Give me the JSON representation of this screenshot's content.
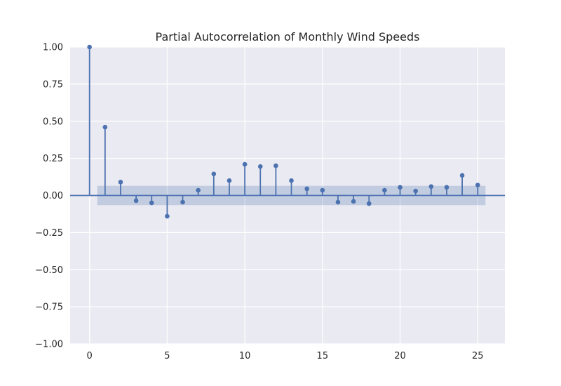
{
  "chart_data": {
    "type": "stem",
    "title": "Partial Autocorrelation of Monthly Wind Speeds",
    "xlabel": "",
    "ylabel": "",
    "xlim": [
      -1.25,
      26.75
    ],
    "ylim": [
      -1.0,
      1.0
    ],
    "x_ticks": [
      0,
      5,
      10,
      15,
      20,
      25
    ],
    "y_ticks": [
      1.0,
      0.75,
      0.5,
      0.25,
      0.0,
      -0.25,
      -0.5,
      -0.75,
      -1.0
    ],
    "y_tick_labels": [
      "1.00",
      "0.75",
      "0.50",
      "0.25",
      "0.00",
      "−0.25",
      "−0.50",
      "−0.75",
      "−1.00"
    ],
    "grid": true,
    "lags": [
      0,
      1,
      2,
      3,
      4,
      5,
      6,
      7,
      8,
      9,
      10,
      11,
      12,
      13,
      14,
      15,
      16,
      17,
      18,
      19,
      20,
      21,
      22,
      23,
      24,
      25
    ],
    "values": [
      1.0,
      0.46,
      0.09,
      -0.035,
      -0.05,
      -0.14,
      -0.045,
      0.035,
      0.145,
      0.1,
      0.21,
      0.195,
      0.2,
      0.1,
      0.045,
      0.035,
      -0.045,
      -0.04,
      -0.055,
      0.035,
      0.055,
      0.03,
      0.06,
      0.055,
      0.135,
      0.07
    ],
    "confidence_interval": {
      "x_range": [
        0.5,
        25.5
      ],
      "upper": 0.065,
      "lower": -0.065
    },
    "colors": {
      "stem": "#4c72b0",
      "band": "#4c72b0",
      "background": "#eaeaf2",
      "grid": "#ffffff"
    }
  }
}
